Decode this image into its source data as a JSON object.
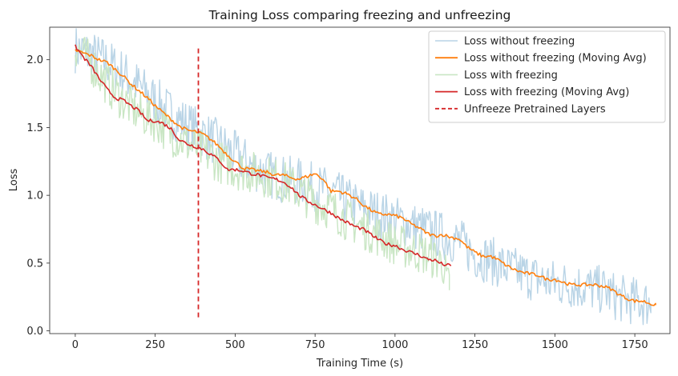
{
  "chart_data": {
    "type": "line",
    "title": "Training Loss comparing freezing and unfreezing",
    "xlabel": "Training Time (s)",
    "ylabel": "Loss",
    "xlim": [
      -80,
      1860
    ],
    "ylim": [
      -0.02,
      2.24
    ],
    "xticks": [
      0,
      250,
      500,
      750,
      1000,
      1250,
      1500,
      1750
    ],
    "yticks": [
      0.0,
      0.5,
      1.0,
      1.5,
      2.0
    ],
    "grid": false,
    "legend_position": "top-right",
    "series": [
      {
        "name": "Loss without freezing",
        "color": "#b9d4e6",
        "style": "raw",
        "noise_amplitude": 0.18,
        "x": [
          0,
          50,
          100,
          150,
          200,
          250,
          300,
          350,
          400,
          450,
          500,
          550,
          600,
          650,
          700,
          750,
          800,
          850,
          900,
          950,
          1000,
          1050,
          1100,
          1150,
          1200,
          1250,
          1300,
          1350,
          1400,
          1450,
          1500,
          1550,
          1600,
          1650,
          1700,
          1750,
          1800
        ],
        "y": [
          2.08,
          2.04,
          1.98,
          1.9,
          1.8,
          1.7,
          1.6,
          1.52,
          1.45,
          1.38,
          1.3,
          1.22,
          1.16,
          1.12,
          1.1,
          1.06,
          1.02,
          0.96,
          0.9,
          0.86,
          0.82,
          0.78,
          0.74,
          0.7,
          0.66,
          0.56,
          0.52,
          0.46,
          0.42,
          0.38,
          0.35,
          0.34,
          0.32,
          0.3,
          0.24,
          0.22,
          0.2
        ]
      },
      {
        "name": "Loss without freezing (Moving Avg)",
        "color": "#ff7f0e",
        "style": "avg",
        "x": [
          0,
          25,
          50,
          75,
          100,
          125,
          150,
          175,
          200,
          225,
          250,
          275,
          300,
          325,
          350,
          375,
          400,
          425,
          450,
          475,
          500,
          525,
          550,
          575,
          600,
          625,
          650,
          675,
          700,
          725,
          750,
          775,
          800,
          825,
          850,
          875,
          900,
          925,
          950,
          975,
          1000,
          1025,
          1050,
          1075,
          1100,
          1125,
          1150,
          1175,
          1200,
          1225,
          1250,
          1275,
          1300,
          1325,
          1350,
          1375,
          1400,
          1425,
          1450,
          1475,
          1500,
          1525,
          1550,
          1575,
          1600,
          1625,
          1650,
          1675,
          1700,
          1725,
          1750,
          1775,
          1800,
          1815
        ],
        "y": [
          2.07,
          2.05,
          2.03,
          2.0,
          1.98,
          1.93,
          1.88,
          1.82,
          1.77,
          1.72,
          1.66,
          1.61,
          1.56,
          1.51,
          1.48,
          1.47,
          1.45,
          1.41,
          1.36,
          1.3,
          1.25,
          1.2,
          1.19,
          1.18,
          1.17,
          1.15,
          1.15,
          1.13,
          1.12,
          1.14,
          1.16,
          1.12,
          1.03,
          1.03,
          1.01,
          0.98,
          0.93,
          0.89,
          0.86,
          0.86,
          0.85,
          0.83,
          0.79,
          0.76,
          0.72,
          0.7,
          0.71,
          0.69,
          0.68,
          0.62,
          0.58,
          0.55,
          0.55,
          0.52,
          0.48,
          0.45,
          0.43,
          0.42,
          0.41,
          0.38,
          0.38,
          0.36,
          0.34,
          0.34,
          0.34,
          0.34,
          0.33,
          0.31,
          0.27,
          0.24,
          0.22,
          0.22,
          0.2,
          0.19
        ]
      },
      {
        "name": "Loss with freezing",
        "color": "#c9e6c4",
        "style": "raw",
        "noise_amplitude": 0.16,
        "x": [
          0,
          50,
          100,
          150,
          200,
          250,
          300,
          350,
          400,
          450,
          500,
          550,
          600,
          650,
          700,
          750,
          800,
          850,
          900,
          950,
          1000,
          1050,
          1100,
          1150,
          1170
        ],
        "y": [
          2.1,
          1.97,
          1.82,
          1.7,
          1.6,
          1.55,
          1.45,
          1.38,
          1.32,
          1.25,
          1.2,
          1.17,
          1.14,
          1.1,
          1.03,
          0.95,
          0.9,
          0.82,
          0.76,
          0.7,
          0.64,
          0.6,
          0.56,
          0.5,
          0.3
        ]
      },
      {
        "name": "Loss with freezing (Moving Avg)",
        "color": "#d62728",
        "style": "avg",
        "x": [
          0,
          25,
          50,
          75,
          100,
          125,
          150,
          175,
          200,
          225,
          250,
          275,
          300,
          325,
          350,
          375,
          400,
          425,
          450,
          475,
          500,
          525,
          550,
          575,
          600,
          625,
          650,
          675,
          700,
          725,
          750,
          775,
          800,
          825,
          850,
          875,
          900,
          925,
          950,
          975,
          1000,
          1025,
          1050,
          1075,
          1100,
          1125,
          1150,
          1175
        ],
        "y": [
          2.1,
          2.02,
          1.95,
          1.86,
          1.78,
          1.72,
          1.7,
          1.66,
          1.62,
          1.55,
          1.55,
          1.53,
          1.49,
          1.41,
          1.38,
          1.36,
          1.34,
          1.3,
          1.26,
          1.19,
          1.19,
          1.18,
          1.16,
          1.15,
          1.13,
          1.12,
          1.1,
          1.06,
          1.0,
          0.96,
          0.93,
          0.9,
          0.87,
          0.83,
          0.8,
          0.77,
          0.75,
          0.71,
          0.67,
          0.64,
          0.63,
          0.6,
          0.58,
          0.56,
          0.53,
          0.52,
          0.49,
          0.48
        ]
      }
    ],
    "annotations": [
      {
        "type": "vline",
        "name": "Unfreeze Pretrained Layers",
        "x": 385,
        "y_range": [
          0.1,
          2.1
        ],
        "color": "#d62728",
        "style": "dashed"
      }
    ]
  }
}
